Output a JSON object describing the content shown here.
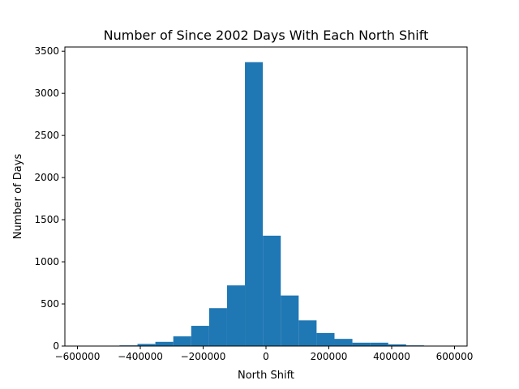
{
  "chart_data": {
    "type": "bar",
    "title": "Number of Since 2002 Days With Each North Shift",
    "xlabel": "North Shift",
    "ylabel": "Number of Days",
    "xlim": [
      -640000,
      640000
    ],
    "ylim": [
      0,
      3550
    ],
    "xticks": [
      -600000,
      -400000,
      -200000,
      0,
      200000,
      400000,
      600000
    ],
    "xtick_labels": [
      "−600000",
      "−400000",
      "−200000",
      "0",
      "200000",
      "400000",
      "600000"
    ],
    "yticks": [
      0,
      500,
      1000,
      1500,
      2000,
      2500,
      3000,
      3500
    ],
    "ytick_labels": [
      "0",
      "500",
      "1000",
      "1500",
      "2000",
      "2500",
      "3000",
      "3500"
    ],
    "grid": false,
    "bar_color": "#1f77b4",
    "bins": [
      {
        "x0": -580000,
        "x1": -523000,
        "value": 0
      },
      {
        "x0": -523000,
        "x1": -466000,
        "value": 3
      },
      {
        "x0": -466000,
        "x1": -409000,
        "value": 8
      },
      {
        "x0": -409000,
        "x1": -352000,
        "value": 25
      },
      {
        "x0": -352000,
        "x1": -295000,
        "value": 50
      },
      {
        "x0": -295000,
        "x1": -238000,
        "value": 115
      },
      {
        "x0": -238000,
        "x1": -181000,
        "value": 240
      },
      {
        "x0": -181000,
        "x1": -124000,
        "value": 450
      },
      {
        "x0": -124000,
        "x1": -67000,
        "value": 720
      },
      {
        "x0": -67000,
        "x1": -10000,
        "value": 3370
      },
      {
        "x0": -10000,
        "x1": 47000,
        "value": 1310
      },
      {
        "x0": 47000,
        "x1": 104000,
        "value": 600
      },
      {
        "x0": 104000,
        "x1": 161000,
        "value": 305
      },
      {
        "x0": 161000,
        "x1": 218000,
        "value": 155
      },
      {
        "x0": 218000,
        "x1": 275000,
        "value": 85
      },
      {
        "x0": 275000,
        "x1": 332000,
        "value": 40
      },
      {
        "x0": 332000,
        "x1": 389000,
        "value": 40
      },
      {
        "x0": 389000,
        "x1": 446000,
        "value": 20
      },
      {
        "x0": 446000,
        "x1": 503000,
        "value": 8
      },
      {
        "x0": 503000,
        "x1": 560000,
        "value": 0
      }
    ]
  }
}
